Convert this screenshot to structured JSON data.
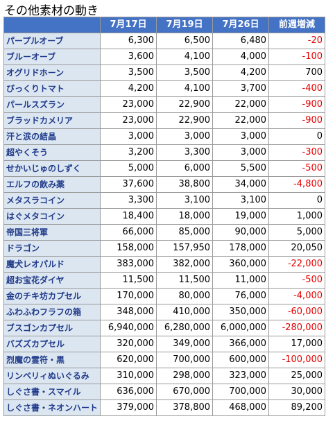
{
  "title": "その他素材の動き",
  "columns": [
    "",
    "7月17日",
    "7月19日",
    "7月26日",
    "前週増減"
  ],
  "rows": [
    {
      "name": "パープルオーブ",
      "v1": "6,300",
      "v2": "6,500",
      "v3": "6,480",
      "diff": "-20",
      "negative": true
    },
    {
      "name": "ブルーオーブ",
      "v1": "3,600",
      "v2": "4,100",
      "v3": "4,000",
      "diff": "-100",
      "negative": true
    },
    {
      "name": "オグリドホーン",
      "v1": "3,500",
      "v2": "3,500",
      "v3": "4,200",
      "diff": "700",
      "negative": false
    },
    {
      "name": "びっくりトマト",
      "v1": "4,200",
      "v2": "4,100",
      "v3": "3,700",
      "diff": "-400",
      "negative": true
    },
    {
      "name": "パールスズラン",
      "v1": "23,000",
      "v2": "22,900",
      "v3": "22,000",
      "diff": "-900",
      "negative": true
    },
    {
      "name": "ブラッドカメリア",
      "v1": "23,000",
      "v2": "22,900",
      "v3": "22,000",
      "diff": "-900",
      "negative": true
    },
    {
      "name": "汗と涙の結晶",
      "v1": "3,000",
      "v2": "3,000",
      "v3": "3,000",
      "diff": "0",
      "negative": false
    },
    {
      "name": "超やくそう",
      "v1": "3,200",
      "v2": "3,300",
      "v3": "3,000",
      "diff": "-300",
      "negative": true
    },
    {
      "name": "せかいじゅのしずく",
      "v1": "5,000",
      "v2": "6,000",
      "v3": "5,500",
      "diff": "-500",
      "negative": true
    },
    {
      "name": "エルフの飲み薬",
      "v1": "37,600",
      "v2": "38,800",
      "v3": "34,000",
      "diff": "-4,800",
      "negative": true
    },
    {
      "name": "メタスラコイン",
      "v1": "3,300",
      "v2": "3,100",
      "v3": "3,100",
      "diff": "0",
      "negative": false
    },
    {
      "name": "はぐメタコイン",
      "v1": "18,400",
      "v2": "18,000",
      "v3": "19,000",
      "diff": "1,000",
      "negative": false
    },
    {
      "name": "帝国三将軍",
      "v1": "66,000",
      "v2": "85,000",
      "v3": "90,000",
      "diff": "5,000",
      "negative": false
    },
    {
      "name": "ドラゴン",
      "v1": "158,000",
      "v2": "157,950",
      "v3": "178,000",
      "diff": "20,050",
      "negative": false
    },
    {
      "name": "魔犬レオパルド",
      "v1": "383,000",
      "v2": "382,000",
      "v3": "360,000",
      "diff": "-22,000",
      "negative": true
    },
    {
      "name": "超お宝花ダイヤ",
      "v1": "11,500",
      "v2": "11,500",
      "v3": "11,000",
      "diff": "-500",
      "negative": true
    },
    {
      "name": "金のチキ坊カプセル",
      "v1": "170,000",
      "v2": "80,000",
      "v3": "76,000",
      "diff": "-4,000",
      "negative": true
    },
    {
      "name": "ふわふわフラフの箱",
      "v1": "348,000",
      "v2": "410,000",
      "v3": "350,000",
      "diff": "-60,000",
      "negative": true
    },
    {
      "name": "ブスゴンカプセル",
      "v1": "6,940,000",
      "v2": "6,280,000",
      "v3": "6,000,000",
      "diff": "-280,000",
      "negative": true
    },
    {
      "name": "バズズカプセル",
      "v1": "320,000",
      "v2": "349,000",
      "v3": "366,000",
      "diff": "17,000",
      "negative": false
    },
    {
      "name": "烈魔の霊符・黒",
      "v1": "620,000",
      "v2": "700,000",
      "v3": "600,000",
      "diff": "-100,000",
      "negative": true
    },
    {
      "name": "リンベリィぬいぐるみ",
      "v1": "310,000",
      "v2": "298,000",
      "v3": "323,000",
      "diff": "25,000",
      "negative": false
    },
    {
      "name": "しぐさ書・スマイル",
      "v1": "636,000",
      "v2": "670,000",
      "v3": "700,000",
      "diff": "30,000",
      "negative": false
    },
    {
      "name": "しぐさ書・ネオンハート",
      "v1": "379,000",
      "v2": "378,800",
      "v3": "468,000",
      "diff": "89,200",
      "negative": false
    }
  ],
  "colors": {
    "header_bg": "#4472c4",
    "name_bg": "#dce6f1",
    "name_text": "#1f3a8a",
    "negative_text": "#e60000"
  }
}
